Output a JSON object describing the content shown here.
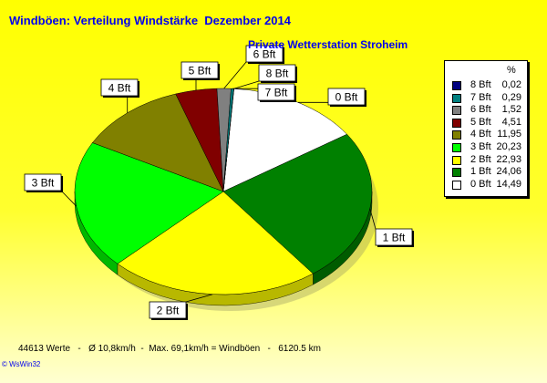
{
  "chart_data": {
    "type": "pie",
    "title": "Windböen: Verteilung Windstärke  Dezember 2014",
    "subtitle": "Private Wetterstation Stroheim",
    "legend_header": "%",
    "legend_placement": "right",
    "slices": [
      {
        "label": "0 Bft",
        "value": 14.49,
        "display": "14,49",
        "color": "#ffffff"
      },
      {
        "label": "1 Bft",
        "value": 24.06,
        "display": "24,06",
        "color": "#008000"
      },
      {
        "label": "2 Bft",
        "value": 22.93,
        "display": "22,93",
        "color": "#ffff00"
      },
      {
        "label": "3 Bft",
        "value": 20.23,
        "display": "20,23",
        "color": "#00ff00"
      },
      {
        "label": "4 Bft",
        "value": 11.95,
        "display": "11,95",
        "color": "#808000"
      },
      {
        "label": "5 Bft",
        "value": 4.51,
        "display": "4,51",
        "color": "#800000"
      },
      {
        "label": "6 Bft",
        "value": 1.52,
        "display": "1,52",
        "color": "#808080"
      },
      {
        "label": "7 Bft",
        "value": 0.29,
        "display": "0,29",
        "color": "#008080"
      },
      {
        "label": "8 Bft",
        "value": 0.02,
        "display": "0,02",
        "color": "#000080"
      }
    ]
  },
  "footer": "44613 Werte   -   Ø 10,8km/h  -  Max. 69,1km/h = Windböen   -   6120.5 km",
  "credit": "© WsWin32"
}
